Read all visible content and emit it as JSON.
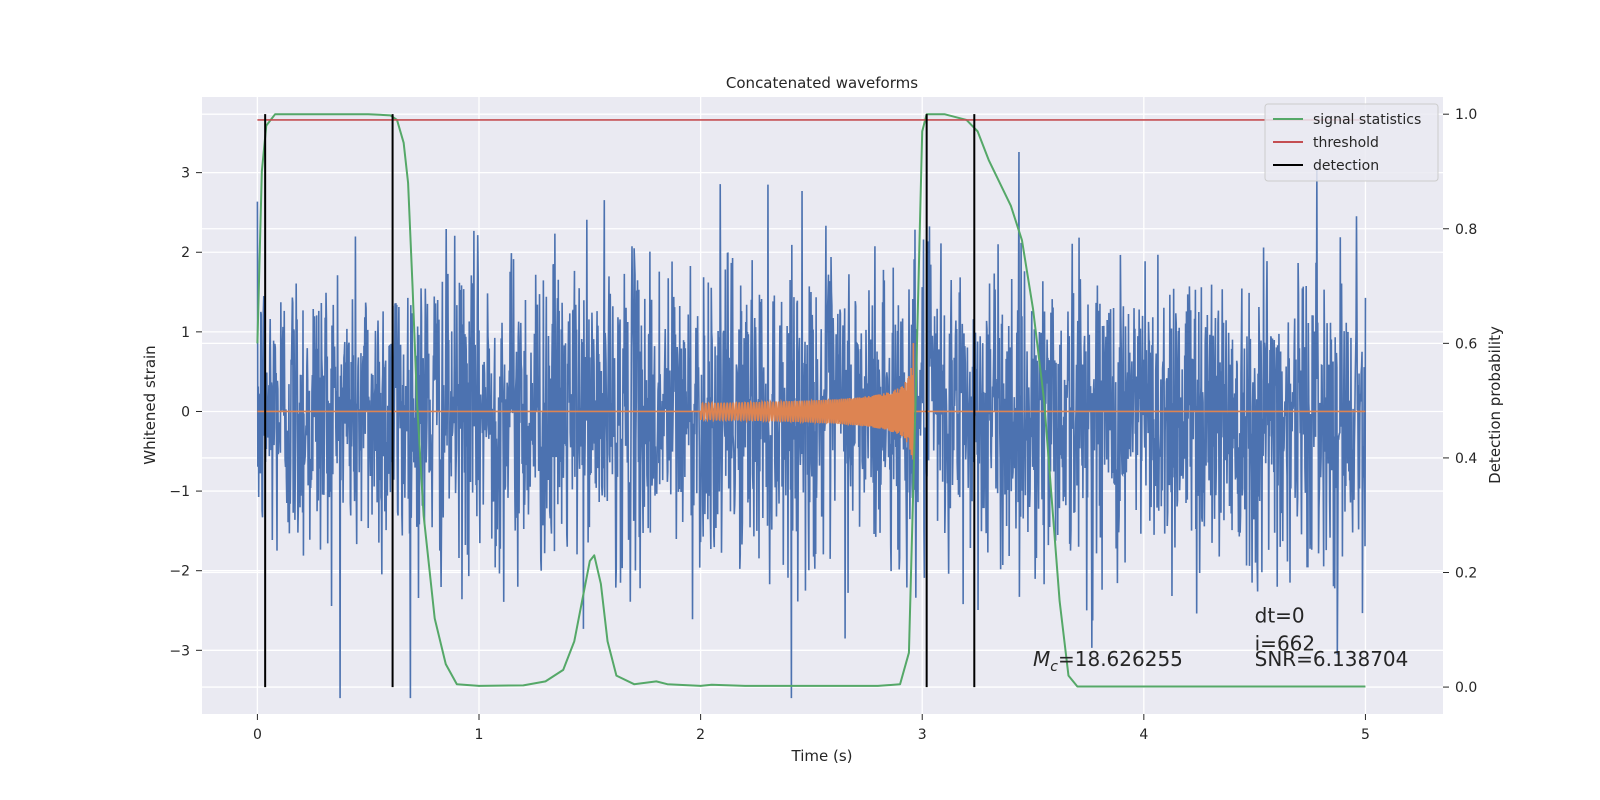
{
  "chart_data": {
    "type": "line",
    "title": "Concatenated waveforms",
    "xlabel": "Time (s)",
    "ylabel_left": "Whitened strain",
    "ylabel_right": "Detection probability",
    "xlim": [
      -0.25,
      5.35
    ],
    "ylim_left": [
      -3.8,
      3.95
    ],
    "ylim_right": [
      -0.047,
      1.03
    ],
    "x_ticks": [
      0,
      1,
      2,
      3,
      4,
      5
    ],
    "x_tick_labels": [
      "0",
      "1",
      "2",
      "3",
      "4",
      "5"
    ],
    "y_left_ticks": [
      -3,
      -2,
      -1,
      0,
      1,
      2,
      3
    ],
    "y_left_tick_labels": [
      "−3",
      "−2",
      "−1",
      "0",
      "1",
      "2",
      "3"
    ],
    "y_right_ticks": [
      0.0,
      0.2,
      0.4,
      0.6,
      0.8,
      1.0
    ],
    "y_right_tick_labels": [
      "0.0",
      "0.2",
      "0.4",
      "0.6",
      "0.8",
      "1.0"
    ],
    "grid": true,
    "legend_position": "top-right",
    "background_color": "#eaeaf2",
    "series": [
      {
        "name": "",
        "axis": "left",
        "color": "#4c72b0",
        "kind": "noise",
        "x_range": [
          0,
          5
        ],
        "amplitude_sd": 0.95,
        "max_abs": 3.6
      },
      {
        "name": "",
        "axis": "left",
        "color": "#dd8452",
        "kind": "chirp",
        "x_range": [
          0,
          5
        ],
        "chirp_start": 2.0,
        "chirp_end": 2.96,
        "peak_amplitude": 1.05
      },
      {
        "name": "signal statistics",
        "axis": "right",
        "color": "#55a868",
        "x": [
          0.0,
          0.02,
          0.04,
          0.08,
          0.15,
          0.3,
          0.5,
          0.6,
          0.63,
          0.66,
          0.68,
          0.7,
          0.72,
          0.75,
          0.8,
          0.85,
          0.9,
          1.0,
          1.2,
          1.3,
          1.38,
          1.43,
          1.47,
          1.5,
          1.52,
          1.55,
          1.58,
          1.62,
          1.7,
          1.8,
          1.85,
          2.0,
          2.05,
          2.2,
          2.5,
          2.8,
          2.9,
          2.94,
          2.97,
          3.0,
          3.02,
          3.05,
          3.1,
          3.2,
          3.25,
          3.3,
          3.4,
          3.45,
          3.5,
          3.55,
          3.58,
          3.62,
          3.66,
          3.7,
          4.0,
          4.5,
          5.0
        ],
        "y": [
          0.6,
          0.9,
          0.98,
          1.0,
          1.0,
          1.0,
          1.0,
          0.998,
          0.99,
          0.95,
          0.88,
          0.7,
          0.5,
          0.3,
          0.12,
          0.04,
          0.005,
          0.002,
          0.003,
          0.01,
          0.03,
          0.08,
          0.16,
          0.22,
          0.23,
          0.18,
          0.08,
          0.02,
          0.005,
          0.01,
          0.005,
          0.002,
          0.004,
          0.002,
          0.002,
          0.002,
          0.005,
          0.06,
          0.5,
          0.97,
          1.0,
          1.0,
          1.0,
          0.99,
          0.97,
          0.92,
          0.84,
          0.78,
          0.66,
          0.5,
          0.35,
          0.15,
          0.02,
          0.001,
          0.001,
          0.001,
          0.001
        ]
      },
      {
        "name": "threshold",
        "axis": "right",
        "color": "#c44e52",
        "x": [
          0,
          5
        ],
        "y": [
          0.99,
          0.99
        ]
      },
      {
        "name": "detection",
        "axis": "left",
        "color": "#000000",
        "kind": "vlines",
        "x": [
          0.035,
          0.61,
          3.02,
          3.235
        ]
      }
    ],
    "annotations": [
      {
        "x": 3.5,
        "y": -3.2,
        "axis": "left",
        "text": "=18.626255",
        "prefix_math": "M",
        "prefix_sub": "c"
      },
      {
        "x": 4.5,
        "y": -2.65,
        "axis": "left",
        "text": "dt=0"
      },
      {
        "x": 4.5,
        "y": -3.0,
        "axis": "left",
        "text": "i=662"
      },
      {
        "x": 4.5,
        "y": -3.2,
        "axis": "left",
        "text": "SNR=6.138704"
      }
    ]
  }
}
